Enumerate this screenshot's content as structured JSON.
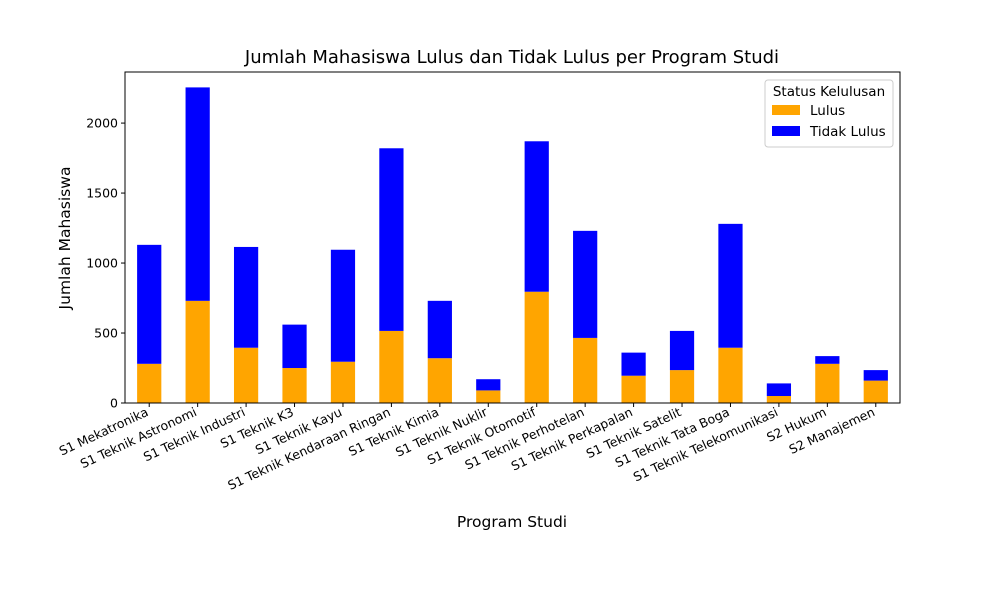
{
  "chart_data": {
    "type": "bar",
    "stacked": true,
    "title": "Jumlah Mahasiswa Lulus dan Tidak Lulus per Program Studi",
    "xlabel": "Program Studi",
    "ylabel": "Jumlah Mahasiswa",
    "ylim": [
      0,
      2365
    ],
    "yticks": [
      0,
      500,
      1000,
      1500,
      2000
    ],
    "grid": false,
    "legend": {
      "title": "Status Kelulusan",
      "placement": "top-right"
    },
    "categories": [
      "S1 Mekatronika",
      "S1 Teknik Astronomi",
      "S1 Teknik Industri",
      "S1 Teknik K3",
      "S1 Teknik Kayu",
      "S1 Teknik Kendaraan Ringan",
      "S1 Teknik Kimia",
      "S1 Teknik Nuklir",
      "S1 Teknik Otomotif",
      "S1 Teknik Perhotelan",
      "S1 Teknik Perkapalan",
      "S1 Teknik Satelit",
      "S1 Teknik Tata Boga",
      "S1 Teknik Telekomunikasi",
      "S2 Hukum",
      "S2 Manajemen"
    ],
    "series": [
      {
        "name": "Lulus",
        "color": "#ffa500",
        "values": [
          280,
          730,
          395,
          250,
          295,
          515,
          320,
          90,
          795,
          465,
          195,
          235,
          395,
          50,
          280,
          160
        ]
      },
      {
        "name": "Tidak Lulus",
        "color": "#0000ff",
        "values": [
          850,
          1525,
          720,
          310,
          800,
          1305,
          410,
          80,
          1075,
          765,
          165,
          280,
          885,
          90,
          55,
          75
        ]
      }
    ]
  }
}
